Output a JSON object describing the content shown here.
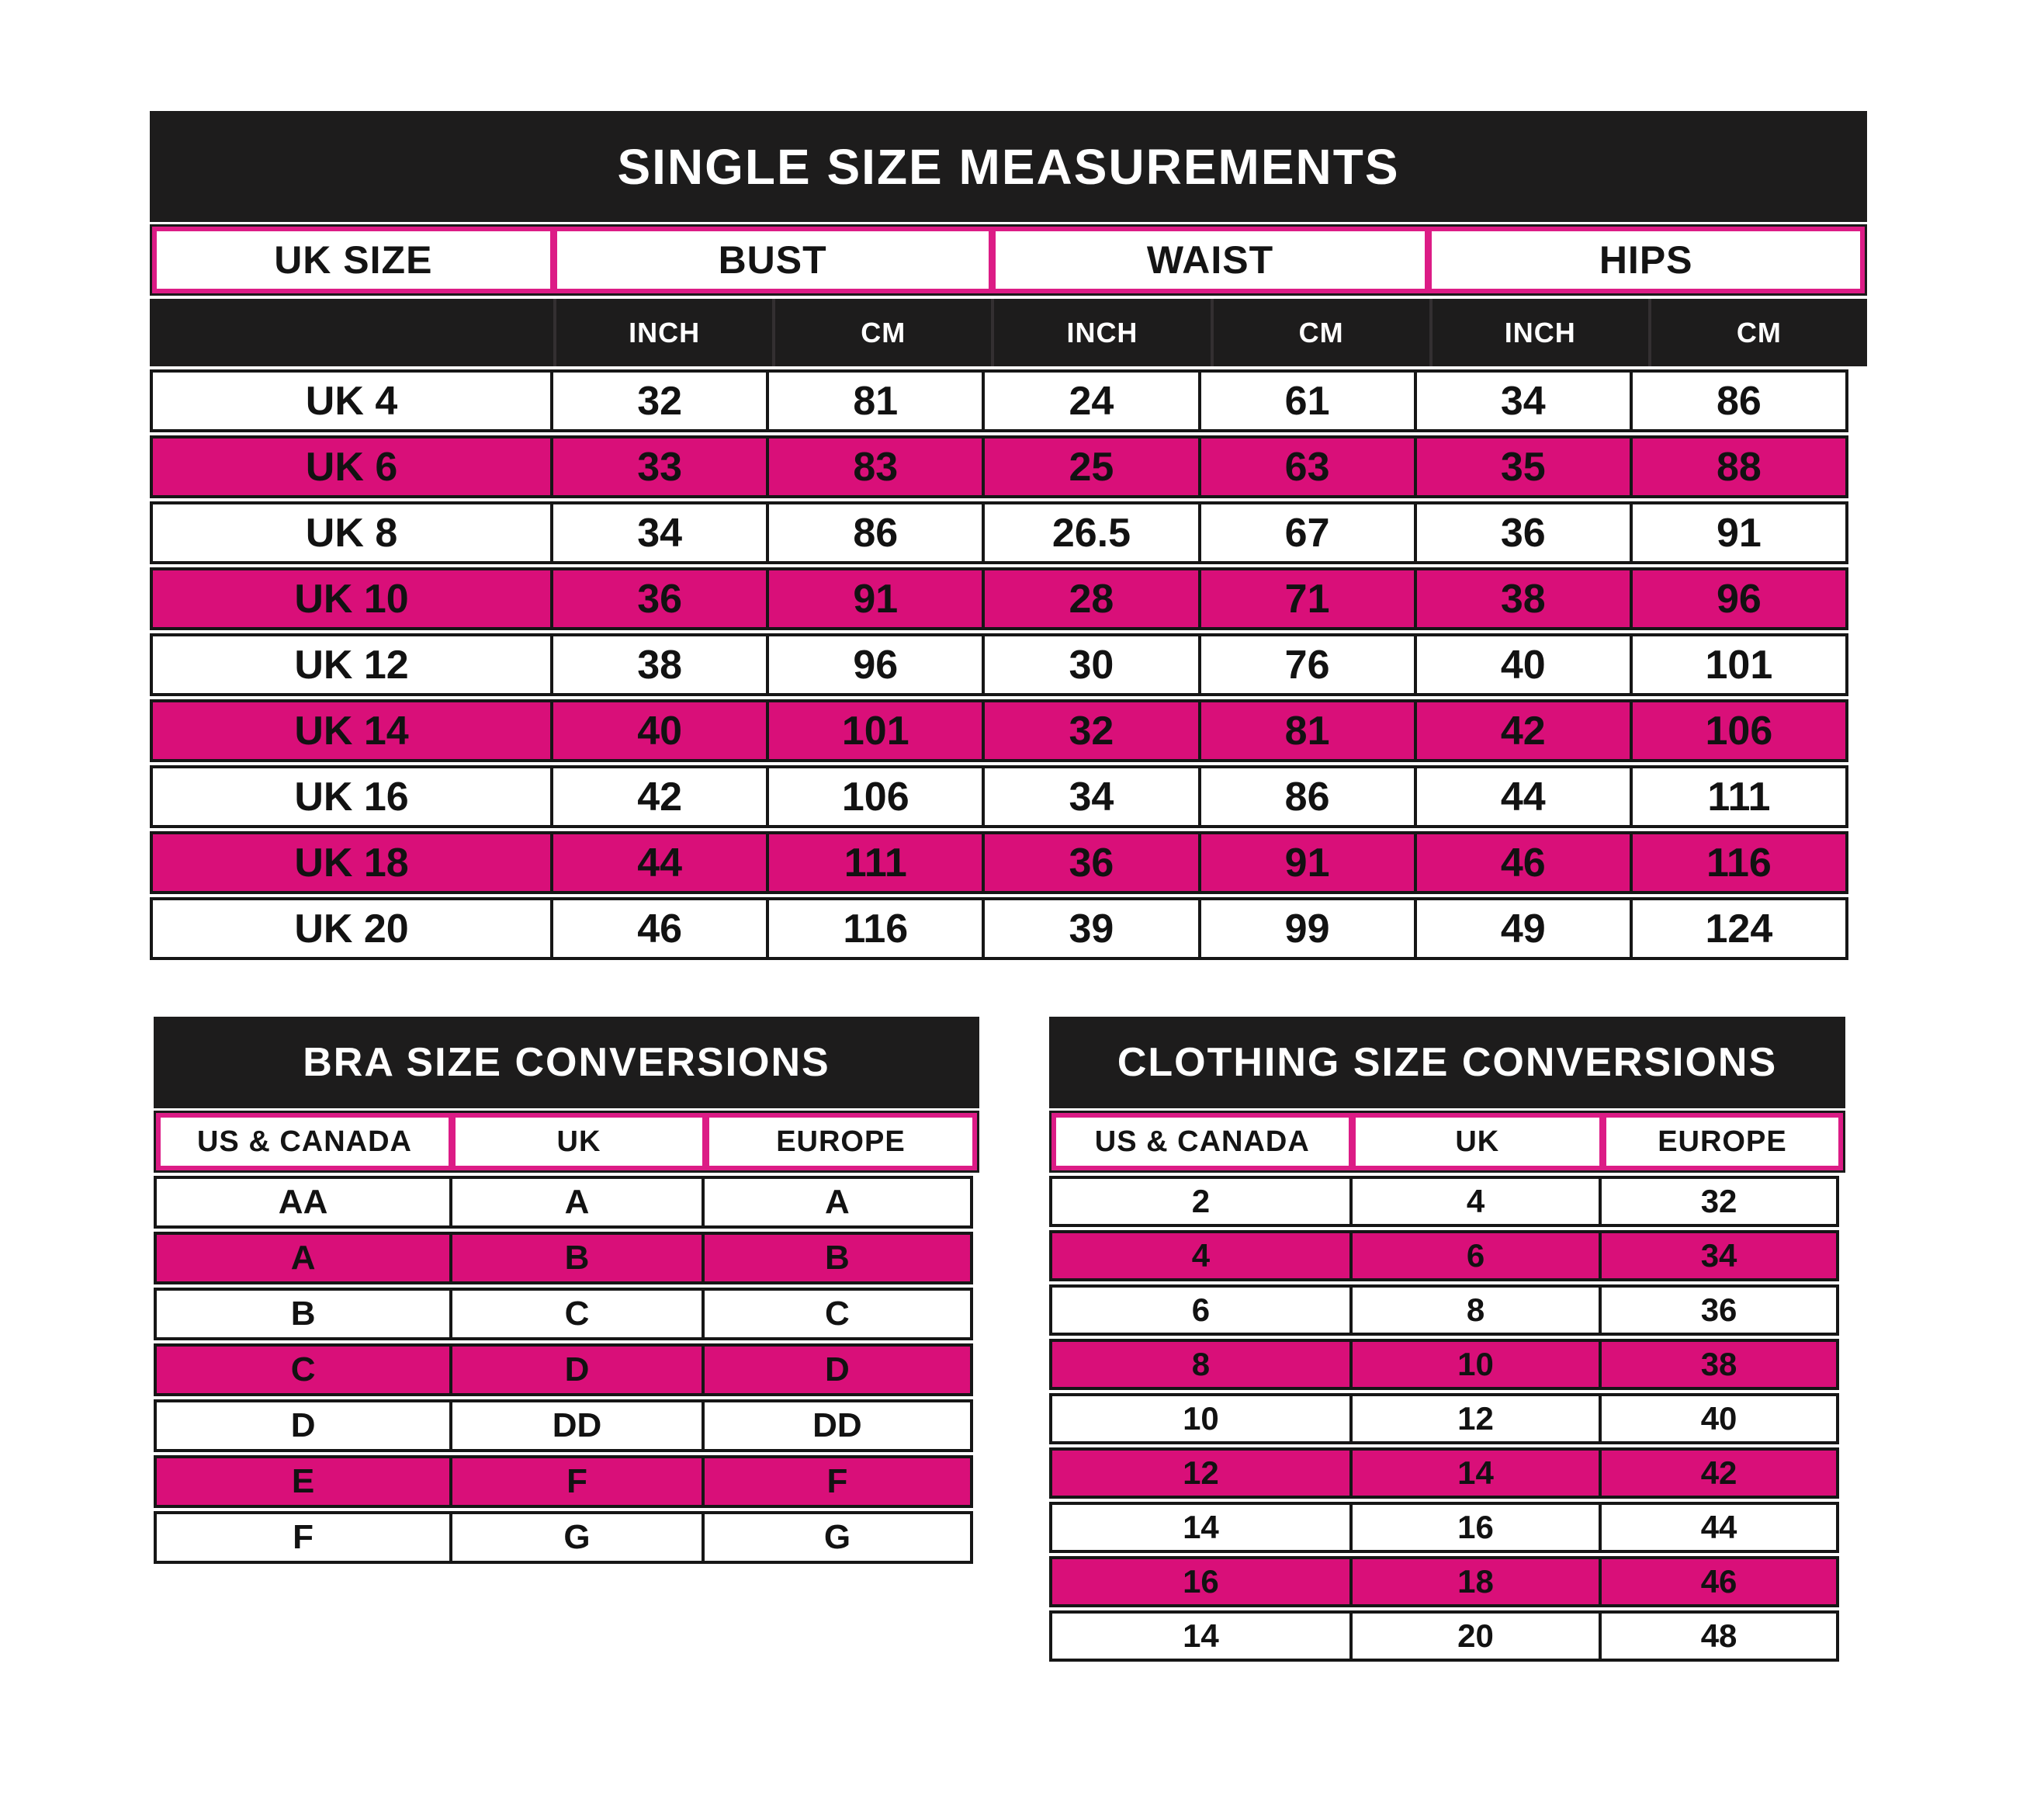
{
  "colors": {
    "bar_black": "#1d1c1c",
    "border_black": "#161616",
    "row_pink": "#d90f79",
    "header_border_pink": "#dc1c86",
    "text_black": "#121212",
    "text_white": "#ffffff",
    "background": "#ffffff"
  },
  "main_table": {
    "title": "SINGLE SIZE MEASUREMENTS",
    "col_headers": [
      "UK SIZE",
      "BUST",
      "WAIST",
      "HIPS"
    ],
    "sub_headers": [
      "INCH",
      "CM",
      "INCH",
      "CM",
      "INCH",
      "CM"
    ],
    "rows": [
      {
        "highlight": false,
        "cells": [
          "UK 4",
          "32",
          "81",
          "24",
          "61",
          "34",
          "86"
        ]
      },
      {
        "highlight": true,
        "cells": [
          "UK 6",
          "33",
          "83",
          "25",
          "63",
          "35",
          "88"
        ]
      },
      {
        "highlight": false,
        "cells": [
          "UK 8",
          "34",
          "86",
          "26.5",
          "67",
          "36",
          "91"
        ]
      },
      {
        "highlight": true,
        "cells": [
          "UK 10",
          "36",
          "91",
          "28",
          "71",
          "38",
          "96"
        ]
      },
      {
        "highlight": false,
        "cells": [
          "UK 12",
          "38",
          "96",
          "30",
          "76",
          "40",
          "101"
        ]
      },
      {
        "highlight": true,
        "cells": [
          "UK 14",
          "40",
          "101",
          "32",
          "81",
          "42",
          "106"
        ]
      },
      {
        "highlight": false,
        "cells": [
          "UK 16",
          "42",
          "106",
          "34",
          "86",
          "44",
          "111"
        ]
      },
      {
        "highlight": true,
        "cells": [
          "UK 18",
          "44",
          "111",
          "36",
          "91",
          "46",
          "116"
        ]
      },
      {
        "highlight": false,
        "cells": [
          "UK 20",
          "46",
          "116",
          "39",
          "99",
          "49",
          "124"
        ]
      }
    ]
  },
  "bra_table": {
    "title": "BRA SIZE CONVERSIONS",
    "col_headers": [
      "US & CANADA",
      "UK",
      "EUROPE"
    ],
    "rows": [
      {
        "highlight": false,
        "cells": [
          "AA",
          "A",
          "A"
        ]
      },
      {
        "highlight": true,
        "cells": [
          "A",
          "B",
          "B"
        ]
      },
      {
        "highlight": false,
        "cells": [
          "B",
          "C",
          "C"
        ]
      },
      {
        "highlight": true,
        "cells": [
          "C",
          "D",
          "D"
        ]
      },
      {
        "highlight": false,
        "cells": [
          "D",
          "DD",
          "DD"
        ]
      },
      {
        "highlight": true,
        "cells": [
          "E",
          "F",
          "F"
        ]
      },
      {
        "highlight": false,
        "cells": [
          "F",
          "G",
          "G"
        ]
      }
    ]
  },
  "clothing_table": {
    "title": "CLOTHING SIZE CONVERSIONS",
    "col_headers": [
      "US & CANADA",
      "UK",
      "EUROPE"
    ],
    "rows": [
      {
        "highlight": false,
        "cells": [
          "2",
          "4",
          "32"
        ]
      },
      {
        "highlight": true,
        "cells": [
          "4",
          "6",
          "34"
        ]
      },
      {
        "highlight": false,
        "cells": [
          "6",
          "8",
          "36"
        ]
      },
      {
        "highlight": true,
        "cells": [
          "8",
          "10",
          "38"
        ]
      },
      {
        "highlight": false,
        "cells": [
          "10",
          "12",
          "40"
        ]
      },
      {
        "highlight": true,
        "cells": [
          "12",
          "14",
          "42"
        ]
      },
      {
        "highlight": false,
        "cells": [
          "14",
          "16",
          "44"
        ]
      },
      {
        "highlight": true,
        "cells": [
          "16",
          "18",
          "46"
        ]
      },
      {
        "highlight": false,
        "cells": [
          "14",
          "20",
          "48"
        ]
      }
    ]
  }
}
